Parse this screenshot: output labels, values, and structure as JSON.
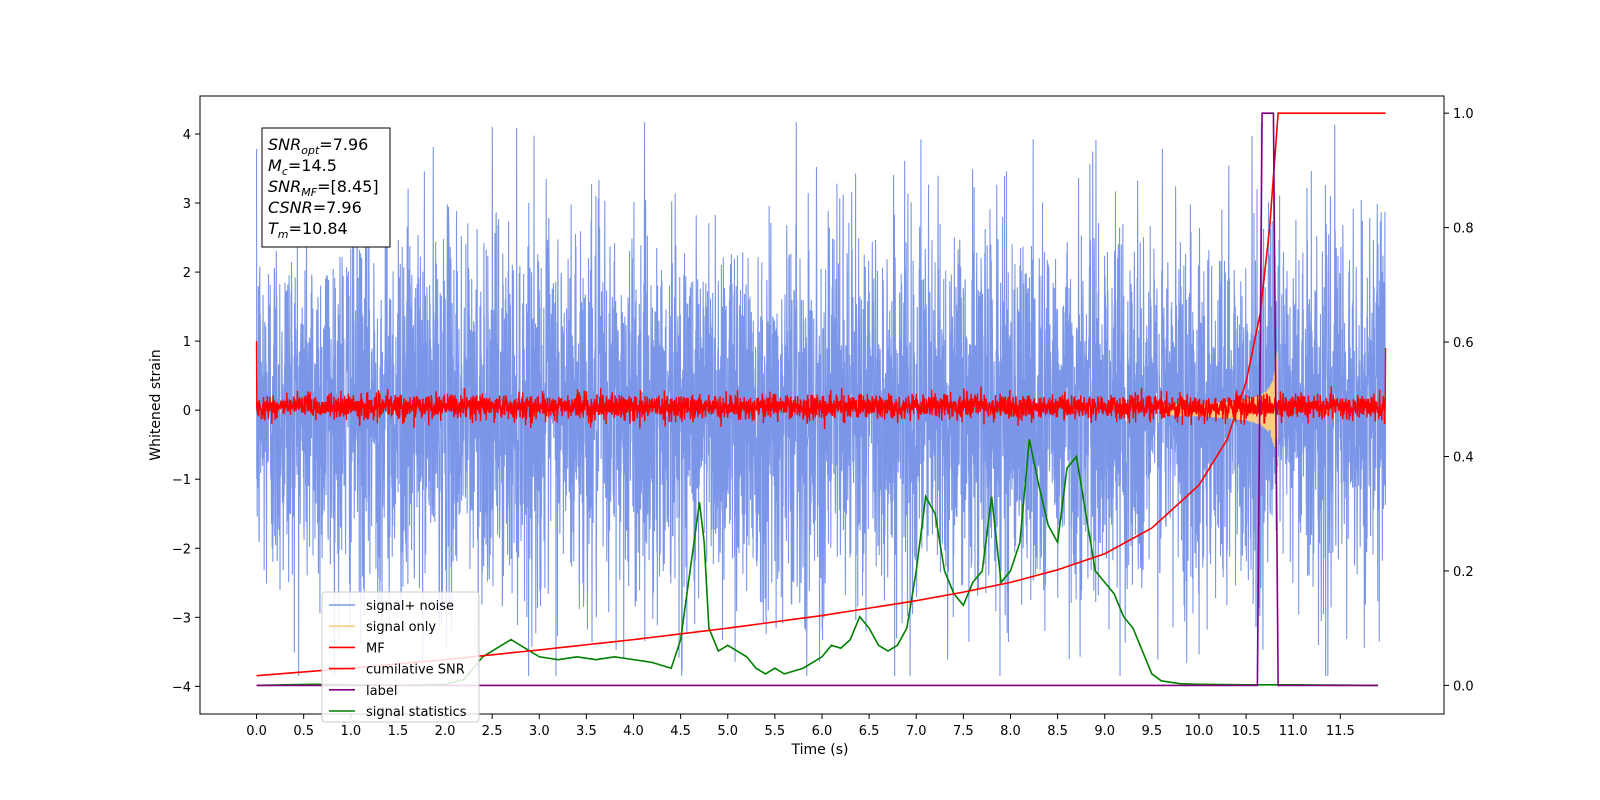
{
  "chart_data": {
    "type": "line",
    "xlabel": "Time (s)",
    "ylabel_left": "Whitened strain",
    "xlim": [
      -0.6,
      12.6
    ],
    "ylim_left": [
      -4.4,
      4.55
    ],
    "ylim_right": [
      -0.05,
      1.03
    ],
    "x_ticks": [
      0.0,
      0.5,
      1.0,
      1.5,
      2.0,
      2.5,
      3.0,
      3.5,
      4.0,
      4.5,
      5.0,
      5.5,
      6.0,
      6.5,
      7.0,
      7.5,
      8.0,
      8.5,
      9.0,
      9.5,
      10.0,
      10.5,
      11.0,
      11.5
    ],
    "x_tick_labels": [
      "0.0",
      "0.5",
      "1.0",
      "1.5",
      "2.0",
      "2.5",
      "3.0",
      "3.5",
      "4.0",
      "4.5",
      "5.0",
      "5.5",
      "6.0",
      "6.5",
      "7.0",
      "7.5",
      "8.0",
      "8.5",
      "9.0",
      "9.5",
      "10.0",
      "10.5",
      "11.0",
      "11.5"
    ],
    "y_left_ticks": [
      4,
      3,
      2,
      1,
      0,
      -1,
      -2,
      -3,
      -4
    ],
    "y_left_tick_labels": [
      "4",
      "3",
      "2",
      "1",
      "0",
      "−1",
      "−2",
      "−3",
      "−4"
    ],
    "y_right_ticks": [
      1.0,
      0.8,
      0.6,
      0.4,
      0.2,
      0.0
    ],
    "y_right_tick_labels": [
      "1.0",
      "0.8",
      "0.6",
      "0.4",
      "0.2",
      "0.0"
    ],
    "legend_position": "lower-left",
    "legend": [
      {
        "label": "signal+ noise",
        "color": "#7b96e8"
      },
      {
        "label": "signal only",
        "color": "#f8cf80"
      },
      {
        "label": "MF",
        "color": "#ff0000"
      },
      {
        "label": "cumilative SNR",
        "color": "#ff0000"
      },
      {
        "label": "label",
        "color": "#800080"
      },
      {
        "label": "signal statistics",
        "color": "#008000"
      }
    ],
    "annotation": [
      {
        "base": "SNR",
        "sub": "opt",
        "value": "=7.96"
      },
      {
        "base": "M",
        "sub": "c",
        "value": "=14.5"
      },
      {
        "base": "SNR",
        "sub": "MF",
        "value": "=[8.45]"
      },
      {
        "base": "CSNR",
        "sub": "",
        "value": "=7.96"
      },
      {
        "base": "T",
        "sub": "m",
        "value": "=10.84"
      }
    ],
    "series": [
      {
        "name": "signal+ noise",
        "axis": "left",
        "color": "#7b96e8",
        "description_values": {
          "x_range": [
            0.0,
            11.98
          ],
          "typical_envelope": [
            -2.2,
            2.2
          ],
          "max": 4.17,
          "min": -3.85
        }
      },
      {
        "name": "signal only",
        "axis": "left",
        "color": "#f8cf80",
        "chirp": {
          "t_start": 9.6,
          "t_merger": 10.84,
          "peak_amplitude": 0.85
        }
      },
      {
        "name": "MF",
        "axis": "left",
        "color": "#ff0000",
        "description_values": {
          "x_range": [
            0.0,
            11.98
          ],
          "typical_envelope": [
            -0.2,
            0.3
          ],
          "start": 1.0,
          "end": 0.9
        }
      },
      {
        "name": "cumilative SNR",
        "axis": "right",
        "color": "#ff0000",
        "x": [
          0.0,
          1.0,
          2.0,
          3.0,
          4.0,
          5.0,
          6.0,
          7.0,
          7.5,
          8.0,
          8.5,
          9.0,
          9.5,
          10.0,
          10.3,
          10.5,
          10.65,
          10.75,
          10.84,
          11.0,
          11.98
        ],
        "y": [
          0.017,
          0.03,
          0.045,
          0.062,
          0.08,
          0.1,
          0.122,
          0.148,
          0.163,
          0.18,
          0.202,
          0.23,
          0.275,
          0.35,
          0.43,
          0.53,
          0.65,
          0.8,
          1.0,
          1.0,
          1.0
        ]
      },
      {
        "name": "label",
        "axis": "right",
        "color": "#800080",
        "x": [
          0.0,
          10.62,
          10.67,
          10.79,
          10.84,
          11.9
        ],
        "y": [
          0.0,
          0.0,
          1.0,
          1.0,
          0.0,
          0.0
        ]
      },
      {
        "name": "signal statistics",
        "axis": "right",
        "color": "#008000",
        "x": [
          0.0,
          0.3,
          0.6,
          1.0,
          1.5,
          2.0,
          2.2,
          2.4,
          2.5,
          2.6,
          2.7,
          2.8,
          2.9,
          3.0,
          3.2,
          3.4,
          3.6,
          3.8,
          4.0,
          4.2,
          4.4,
          4.5,
          4.6,
          4.7,
          4.75,
          4.8,
          4.9,
          5.0,
          5.1,
          5.2,
          5.3,
          5.4,
          5.5,
          5.6,
          5.8,
          6.0,
          6.1,
          6.2,
          6.3,
          6.4,
          6.5,
          6.6,
          6.7,
          6.8,
          6.9,
          7.0,
          7.1,
          7.2,
          7.3,
          7.4,
          7.5,
          7.6,
          7.7,
          7.8,
          7.9,
          8.0,
          8.1,
          8.2,
          8.3,
          8.4,
          8.5,
          8.6,
          8.7,
          8.8,
          8.9,
          9.0,
          9.1,
          9.2,
          9.3,
          9.4,
          9.5,
          9.6,
          9.8,
          10.0,
          10.5,
          11.0,
          11.9
        ],
        "y": [
          0.0,
          0.001,
          0.002,
          0.001,
          0.0,
          0.002,
          0.01,
          0.05,
          0.06,
          0.07,
          0.08,
          0.07,
          0.06,
          0.05,
          0.045,
          0.05,
          0.045,
          0.05,
          0.045,
          0.04,
          0.03,
          0.08,
          0.2,
          0.32,
          0.25,
          0.1,
          0.06,
          0.07,
          0.06,
          0.05,
          0.03,
          0.02,
          0.03,
          0.02,
          0.03,
          0.05,
          0.07,
          0.065,
          0.08,
          0.12,
          0.1,
          0.07,
          0.06,
          0.07,
          0.1,
          0.2,
          0.33,
          0.3,
          0.2,
          0.16,
          0.14,
          0.18,
          0.2,
          0.33,
          0.18,
          0.2,
          0.25,
          0.43,
          0.35,
          0.28,
          0.25,
          0.38,
          0.4,
          0.3,
          0.2,
          0.18,
          0.16,
          0.12,
          0.1,
          0.06,
          0.02,
          0.008,
          0.003,
          0.002,
          0.001,
          0.001,
          0.0
        ]
      }
    ]
  }
}
